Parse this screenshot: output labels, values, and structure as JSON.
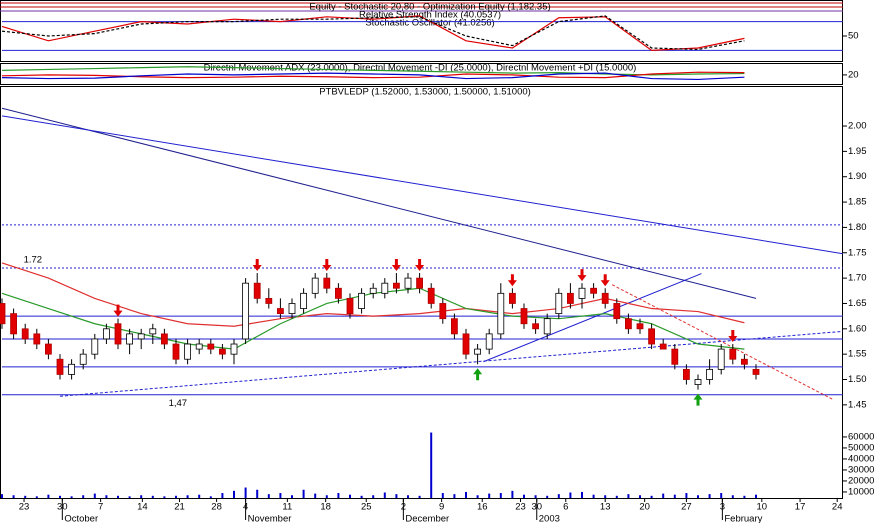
{
  "chart_data": [
    {
      "type": "line",
      "title": "Equity - Stochastic 20,80 - Optimization Equity (1,182.35)",
      "subtitles": [
        "Relative Strength Index (40.0537)",
        "Stochastic Oscillator (41.0256)"
      ],
      "ylim": [
        0,
        100
      ],
      "yticks": [
        50
      ],
      "levels": [
        80,
        20
      ],
      "x": [
        0,
        4,
        8,
        12,
        16,
        20,
        24,
        28,
        32,
        36,
        40,
        44,
        48,
        52,
        56,
        60,
        64
      ],
      "series": [
        {
          "color": "#e00000",
          "values": [
            70,
            40,
            60,
            80,
            75,
            85,
            80,
            90,
            85,
            92,
            40,
            25,
            88,
            90,
            20,
            25,
            45
          ]
        },
        {
          "color": "#000000",
          "dashed": true,
          "values": [
            60,
            50,
            55,
            75,
            80,
            80,
            85,
            85,
            88,
            90,
            50,
            30,
            80,
            92,
            25,
            22,
            40
          ]
        }
      ]
    },
    {
      "type": "line",
      "title": "Directnl Movement ADX (23.0000), Directnl Movement -DI (25.0000), Directnl Movement +DI (15.0000)",
      "ylim": [
        0,
        44
      ],
      "yticks": [
        20
      ],
      "x": [
        0,
        4,
        8,
        12,
        16,
        20,
        24,
        28,
        32,
        36,
        40,
        44,
        48,
        52,
        56,
        60,
        64
      ],
      "series": [
        {
          "color": "#2a9a2a",
          "values": [
            30,
            32,
            34,
            36,
            38,
            36,
            34,
            32,
            30,
            28,
            26,
            24,
            25,
            22,
            20,
            22,
            23
          ]
        },
        {
          "color": "#e00000",
          "values": [
            18,
            20,
            19,
            16,
            14,
            15,
            17,
            16,
            14,
            15,
            22,
            20,
            15,
            14,
            22,
            26,
            25
          ]
        },
        {
          "color": "#0000cc",
          "values": [
            14,
            12,
            13,
            18,
            22,
            20,
            22,
            24,
            22,
            20,
            12,
            14,
            22,
            24,
            12,
            10,
            15
          ]
        }
      ]
    },
    {
      "type": "candlestick",
      "title": "PTBVLEDP (1.52000, 1.53000, 1.50000, 1.51000)",
      "ylim": [
        1.43,
        2.075
      ],
      "xlim": [
        0,
        72.5
      ],
      "yticks": [
        1.45,
        {
          "value": 1.5,
          "label": "1.50"
        },
        1.55,
        {
          "value": 1.6,
          "label": "1.60"
        },
        1.65,
        {
          "value": 1.7,
          "label": "1.70"
        },
        1.75,
        {
          "value": 1.8,
          "label": "1.80"
        },
        1.85,
        {
          "value": 1.9,
          "label": "1.90"
        },
        1.95,
        {
          "value": 2,
          "label": "2.00"
        }
      ],
      "up_color": "#ffffff",
      "down_color": "#e00000",
      "open": [
        1.65,
        1.63,
        1.6,
        1.59,
        1.57,
        1.54,
        1.51,
        1.53,
        1.55,
        1.58,
        1.61,
        1.57,
        1.58,
        1.59,
        1.59,
        1.57,
        1.54,
        1.56,
        1.57,
        1.56,
        1.55,
        1.58,
        1.69,
        1.66,
        1.64,
        1.63,
        1.64,
        1.67,
        1.7,
        1.68,
        1.66,
        1.64,
        1.67,
        1.67,
        1.69,
        1.68,
        1.7,
        1.68,
        1.65,
        1.62,
        1.59,
        1.55,
        1.56,
        1.59,
        1.67,
        1.64,
        1.61,
        1.59,
        1.63,
        1.67,
        1.66,
        1.68,
        1.67,
        1.65,
        1.62,
        1.61,
        1.6,
        1.57,
        1.56,
        1.52,
        1.49,
        1.5,
        1.52,
        1.56,
        1.54,
        1.52
      ],
      "high": [
        1.66,
        1.64,
        1.61,
        1.6,
        1.58,
        1.55,
        1.54,
        1.56,
        1.59,
        1.61,
        1.62,
        1.6,
        1.6,
        1.61,
        1.6,
        1.58,
        1.58,
        1.58,
        1.58,
        1.57,
        1.58,
        1.7,
        1.71,
        1.68,
        1.66,
        1.66,
        1.68,
        1.71,
        1.71,
        1.69,
        1.67,
        1.68,
        1.69,
        1.7,
        1.71,
        1.71,
        1.71,
        1.69,
        1.66,
        1.63,
        1.6,
        1.57,
        1.6,
        1.69,
        1.68,
        1.65,
        1.62,
        1.63,
        1.68,
        1.69,
        1.69,
        1.69,
        1.68,
        1.66,
        1.63,
        1.62,
        1.61,
        1.58,
        1.57,
        1.53,
        1.51,
        1.54,
        1.57,
        1.57,
        1.55,
        1.53
      ],
      "low": [
        1.6,
        1.58,
        1.57,
        1.56,
        1.54,
        1.5,
        1.5,
        1.52,
        1.54,
        1.57,
        1.56,
        1.55,
        1.56,
        1.57,
        1.56,
        1.53,
        1.53,
        1.55,
        1.55,
        1.54,
        1.53,
        1.57,
        1.65,
        1.64,
        1.62,
        1.62,
        1.63,
        1.66,
        1.67,
        1.65,
        1.62,
        1.63,
        1.66,
        1.66,
        1.67,
        1.67,
        1.67,
        1.64,
        1.61,
        1.58,
        1.54,
        1.53,
        1.55,
        1.58,
        1.64,
        1.6,
        1.59,
        1.58,
        1.62,
        1.64,
        1.64,
        1.66,
        1.64,
        1.61,
        1.59,
        1.59,
        1.56,
        1.56,
        1.52,
        1.49,
        1.48,
        1.49,
        1.51,
        1.53,
        1.52,
        1.5
      ],
      "close": [
        1.61,
        1.59,
        1.58,
        1.57,
        1.55,
        1.51,
        1.53,
        1.55,
        1.58,
        1.6,
        1.57,
        1.59,
        1.59,
        1.6,
        1.57,
        1.54,
        1.57,
        1.57,
        1.56,
        1.55,
        1.57,
        1.69,
        1.66,
        1.65,
        1.63,
        1.65,
        1.67,
        1.7,
        1.68,
        1.66,
        1.63,
        1.67,
        1.68,
        1.69,
        1.68,
        1.7,
        1.68,
        1.65,
        1.62,
        1.59,
        1.55,
        1.56,
        1.59,
        1.67,
        1.65,
        1.61,
        1.6,
        1.62,
        1.67,
        1.65,
        1.68,
        1.67,
        1.65,
        1.62,
        1.6,
        1.6,
        1.57,
        1.56,
        1.53,
        1.5,
        1.5,
        1.52,
        1.56,
        1.54,
        1.53,
        1.51
      ],
      "moving_averages": {
        "x": [
          0,
          4,
          8,
          12,
          16,
          20,
          24,
          28,
          32,
          36,
          40,
          44,
          48,
          52,
          56,
          60,
          64
        ],
        "series": [
          {
            "color": "#e03030",
            "values": [
              1.73,
              1.7,
              1.66,
              1.63,
              1.61,
              1.605,
              1.62,
              1.63,
              1.625,
              1.63,
              1.64,
              1.63,
              1.64,
              1.66,
              1.64,
              1.634,
              1.612
            ]
          },
          {
            "color": "#2a9a2a",
            "values": [
              1.67,
              1.64,
              1.61,
              1.59,
              1.57,
              1.56,
              1.61,
              1.65,
              1.67,
              1.68,
              1.64,
              1.625,
              1.62,
              1.63,
              1.61,
              1.57,
              1.56
            ]
          }
        ]
      },
      "trendlines": [
        {
          "color": "#1f1f8f",
          "x": [
            0,
            65
          ],
          "values": [
            2.035,
            1.66
          ]
        },
        {
          "color": "#2020d0",
          "x": [
            0,
            72.5
          ],
          "values": [
            2.02,
            1.748
          ]
        },
        {
          "color": "#2020d0",
          "x": [
            41.5,
            60.3
          ],
          "values": [
            1.535,
            1.709
          ]
        },
        {
          "color": "#2020d0",
          "dashed": true,
          "x": [
            5,
            72.5
          ],
          "values": [
            1.467,
            1.595
          ]
        },
        {
          "color": "#e03030",
          "dashed": true,
          "x": [
            52.6,
            71.6
          ],
          "values": [
            1.687,
            1.461
          ]
        }
      ],
      "levels": [
        {
          "value": 1.805,
          "dashed": true
        },
        {
          "value": 1.72,
          "dashed": true
        },
        {
          "value": 1.625
        },
        {
          "value": 1.58
        },
        {
          "value": 1.525
        },
        {
          "value": 1.47
        }
      ],
      "annotations": [
        {
          "text": "1.72",
          "x": 1,
          "value": 1.72
        },
        {
          "text": "1,47",
          "x": 13.5,
          "value": 1.47
        }
      ],
      "sell_signals": [
        10,
        22,
        28,
        34,
        36,
        44,
        50,
        52,
        63
      ],
      "buy_signals": [
        41,
        60
      ]
    },
    {
      "type": "bar",
      "color": "#0000cc",
      "ylim": [
        4500,
        64500
      ],
      "xlim": [
        0,
        72.5
      ],
      "yticks": [
        10000,
        20000,
        30000,
        40000,
        50000,
        60000
      ],
      "values": [
        8000,
        7000,
        6500,
        6000,
        7500,
        6500,
        6000,
        7000,
        8500,
        7000,
        6500,
        6000,
        7000,
        6500,
        6000,
        6500,
        7000,
        7500,
        6000,
        9000,
        11000,
        14000,
        12000,
        8000,
        9000,
        7000,
        12000,
        8500,
        7000,
        9000,
        7500,
        6500,
        7000,
        9500,
        8000,
        7000,
        6500,
        64000,
        9000,
        8000,
        10000,
        7000,
        8500,
        9000,
        11000,
        7500,
        7000,
        6500,
        8000,
        9500,
        10000,
        7500,
        7000,
        6500,
        8000,
        7000,
        6500,
        8500,
        7500,
        9000,
        7000,
        8000,
        9000,
        7000,
        6500,
        7500
      ],
      "xticks": [
        {
          "value": 1.9,
          "label": "23"
        },
        {
          "value": 5.2,
          "label": "30"
        },
        {
          "value": 8.5,
          "label": "7"
        },
        {
          "value": 12.1,
          "label": "14"
        },
        {
          "value": 15.3,
          "label": "21"
        },
        {
          "value": 18.5,
          "label": "28"
        },
        {
          "value": 21,
          "label": "4"
        },
        {
          "value": 24.6,
          "label": "11"
        },
        {
          "value": 27.9,
          "label": "18"
        },
        {
          "value": 31.4,
          "label": "25"
        },
        {
          "value": 34.6,
          "label": "2"
        },
        {
          "value": 37.9,
          "label": "9"
        },
        {
          "value": 41.4,
          "label": "16"
        },
        {
          "value": 44.7,
          "label": "23"
        },
        {
          "value": 46.1,
          "label": "30"
        },
        {
          "value": 48.6,
          "label": "6"
        },
        {
          "value": 52,
          "label": "13"
        },
        {
          "value": 55.4,
          "label": "20"
        },
        {
          "value": 59,
          "label": "27"
        },
        {
          "value": 62.1,
          "label": "3"
        },
        {
          "value": 65.5,
          "label": "10"
        },
        {
          "value": 68.8,
          "label": "17"
        },
        {
          "value": 72,
          "label": "24"
        }
      ],
      "months": [
        {
          "value": 5.2,
          "label": "October"
        },
        {
          "value": 21,
          "label": "November"
        },
        {
          "value": 34.6,
          "label": "December"
        },
        {
          "value": 46.1,
          "label": "2003"
        },
        {
          "value": 62.1,
          "label": "February"
        }
      ]
    }
  ]
}
